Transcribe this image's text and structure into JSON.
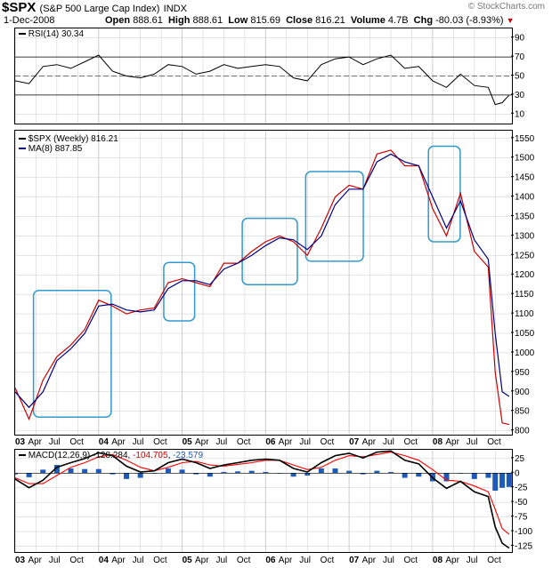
{
  "header": {
    "symbol": "$SPX",
    "name": "(S&P 500 Large Cap Index)",
    "exchange": "INDX",
    "date": "1-Dec-2008",
    "open_label": "Open",
    "open": "888.61",
    "high_label": "High",
    "high": "888.61",
    "low_label": "Low",
    "low": "815.69",
    "close_label": "Close",
    "close": "816.21",
    "volume_label": "Volume",
    "volume": "4.7B",
    "chg_label": "Chg",
    "chg": "-80.03 (-8.93%)",
    "chg_arrow": "▼",
    "watermark": "© StockCharts.com"
  },
  "colors": {
    "price": "#cc0000",
    "ma": "#000080",
    "rsi": "#000000",
    "macd": "#000000",
    "signal": "#ff0000",
    "histogram": "#1e5bb8",
    "box": "#3399cc",
    "grid": "#cccccc"
  },
  "rsi_panel": {
    "legend": "RSI(14) 30.34",
    "ticks": [
      "90",
      "70",
      "50",
      "30",
      "10"
    ]
  },
  "price_panel": {
    "legend_price": "$SPX (Weekly) 816.21",
    "legend_ma": "MA(8) 887.85",
    "ticks": [
      "1550",
      "1500",
      "1450",
      "1400",
      "1350",
      "1300",
      "1250",
      "1200",
      "1150",
      "1100",
      "1050",
      "1000",
      "950",
      "900",
      "850",
      "800"
    ]
  },
  "macd_panel": {
    "legend_name": "MACD(12,26,9)",
    "legend_macd": "-128.284",
    "legend_signal": "-104.705",
    "legend_hist": "-23.579",
    "ticks": [
      "25",
      "0",
      "-25",
      "-50",
      "-75",
      "-100",
      "-125"
    ]
  },
  "x_axis": {
    "labels": [
      "03",
      "Apr",
      "Jul",
      "Oct",
      "04",
      "Apr",
      "Jul",
      "Oct",
      "05",
      "Apr",
      "Jul",
      "Oct",
      "06",
      "Apr",
      "Jul",
      "Oct",
      "07",
      "Apr",
      "Jul",
      "Oct",
      "08",
      "Apr",
      "Jul",
      "Oct"
    ],
    "bold": [
      "03",
      "04",
      "05",
      "06",
      "07",
      "08"
    ]
  },
  "chart_data": [
    {
      "type": "line",
      "title": "$SPX (Weekly) 816.21",
      "ylim": [
        790,
        1570
      ],
      "x": [
        "2003-01",
        "2003-03",
        "2003-05",
        "2003-07",
        "2003-09",
        "2003-11",
        "2004-01",
        "2004-03",
        "2004-05",
        "2004-07",
        "2004-09",
        "2004-11",
        "2005-01",
        "2005-03",
        "2005-05",
        "2005-07",
        "2005-09",
        "2005-11",
        "2006-01",
        "2006-03",
        "2006-05",
        "2006-07",
        "2006-09",
        "2006-11",
        "2007-01",
        "2007-03",
        "2007-05",
        "2007-07",
        "2007-09",
        "2007-11",
        "2008-01",
        "2008-03",
        "2008-05",
        "2008-07",
        "2008-09",
        "2008-10",
        "2008-11",
        "2008-12"
      ],
      "series": [
        {
          "name": "$SPX (Weekly)",
          "values": [
            910,
            830,
            930,
            990,
            1020,
            1060,
            1135,
            1120,
            1100,
            1110,
            1115,
            1180,
            1190,
            1180,
            1170,
            1230,
            1230,
            1260,
            1285,
            1300,
            1285,
            1250,
            1320,
            1400,
            1430,
            1420,
            1510,
            1520,
            1480,
            1480,
            1370,
            1300,
            1410,
            1260,
            1220,
            950,
            820,
            816
          ]
        },
        {
          "name": "MA(8)",
          "values": [
            900,
            860,
            900,
            980,
            1010,
            1050,
            1120,
            1125,
            1110,
            1105,
            1110,
            1165,
            1185,
            1185,
            1175,
            1215,
            1230,
            1250,
            1275,
            1295,
            1290,
            1265,
            1300,
            1380,
            1420,
            1420,
            1490,
            1510,
            1490,
            1480,
            1400,
            1320,
            1390,
            1290,
            1240,
            1050,
            900,
            888
          ]
        }
      ]
    },
    {
      "type": "line",
      "title": "RSI(14) 30.34",
      "ylim": [
        0,
        100
      ],
      "x": [
        "2003-01",
        "2003-03",
        "2003-05",
        "2003-07",
        "2003-09",
        "2003-11",
        "2004-01",
        "2004-03",
        "2004-05",
        "2004-07",
        "2004-09",
        "2004-11",
        "2005-01",
        "2005-03",
        "2005-05",
        "2005-07",
        "2005-09",
        "2005-11",
        "2006-01",
        "2006-03",
        "2006-05",
        "2006-07",
        "2006-09",
        "2006-11",
        "2007-01",
        "2007-03",
        "2007-05",
        "2007-07",
        "2007-09",
        "2007-11",
        "2008-01",
        "2008-03",
        "2008-05",
        "2008-07",
        "2008-09",
        "2008-10",
        "2008-11",
        "2008-12"
      ],
      "series": [
        {
          "name": "RSI(14)",
          "values": [
            45,
            42,
            60,
            62,
            58,
            65,
            72,
            55,
            50,
            48,
            52,
            62,
            60,
            52,
            55,
            62,
            58,
            60,
            62,
            60,
            48,
            45,
            62,
            68,
            70,
            62,
            68,
            72,
            58,
            60,
            45,
            38,
            52,
            40,
            38,
            20,
            22,
            30
          ]
        }
      ]
    },
    {
      "type": "line",
      "title": "MACD(12,26,9)",
      "ylim": [
        -135,
        40
      ],
      "x": [
        "2003-01",
        "2003-03",
        "2003-05",
        "2003-07",
        "2003-09",
        "2003-11",
        "2004-01",
        "2004-03",
        "2004-05",
        "2004-07",
        "2004-09",
        "2004-11",
        "2005-01",
        "2005-03",
        "2005-05",
        "2005-07",
        "2005-09",
        "2005-11",
        "2006-01",
        "2006-03",
        "2006-05",
        "2006-07",
        "2006-09",
        "2006-11",
        "2007-01",
        "2007-03",
        "2007-05",
        "2007-07",
        "2007-09",
        "2007-11",
        "2008-01",
        "2008-03",
        "2008-05",
        "2008-07",
        "2008-09",
        "2008-10",
        "2008-11",
        "2008-12"
      ],
      "series": [
        {
          "name": "MACD",
          "values": [
            -10,
            -25,
            -12,
            10,
            18,
            25,
            35,
            30,
            12,
            2,
            4,
            18,
            24,
            18,
            8,
            14,
            18,
            22,
            24,
            22,
            8,
            2,
            18,
            30,
            34,
            26,
            36,
            38,
            22,
            16,
            -8,
            -26,
            -14,
            -32,
            -40,
            -92,
            -120,
            -128.284
          ]
        },
        {
          "name": "Signal",
          "values": [
            -8,
            -18,
            -18,
            -4,
            10,
            18,
            28,
            32,
            22,
            10,
            4,
            10,
            18,
            20,
            14,
            12,
            15,
            18,
            22,
            22,
            14,
            6,
            10,
            22,
            30,
            28,
            32,
            36,
            30,
            22,
            6,
            -12,
            -14,
            -22,
            -32,
            -62,
            -95,
            -104.705
          ]
        },
        {
          "name": "Histogram",
          "values": [
            -2,
            -7,
            6,
            14,
            8,
            7,
            7,
            -2,
            -10,
            -8,
            0,
            8,
            6,
            -2,
            -6,
            2,
            3,
            4,
            2,
            0,
            -6,
            -4,
            8,
            8,
            4,
            -2,
            4,
            2,
            -8,
            -6,
            -14,
            -14,
            0,
            -10,
            -8,
            -30,
            -25,
            -23.579
          ]
        }
      ]
    }
  ]
}
